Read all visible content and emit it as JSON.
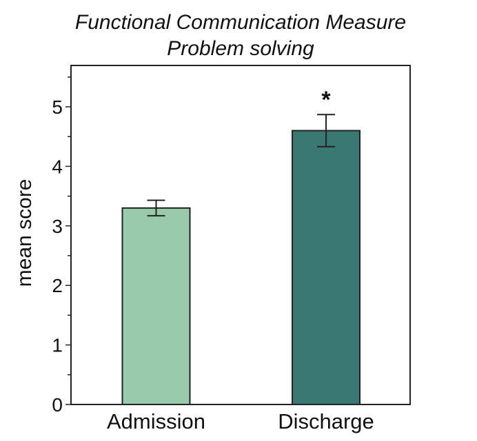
{
  "chart_data": {
    "type": "bar",
    "title": "Functional Communication Measure",
    "subtitle": "Problem solving",
    "xlabel": "",
    "ylabel": "mean score",
    "categories": [
      "Admission",
      "Discharge"
    ],
    "values": [
      3.3,
      4.6
    ],
    "errors": [
      0.13,
      0.27
    ],
    "colors": [
      "#97cbab",
      "#387772"
    ],
    "annotations": [
      {
        "category": "Discharge",
        "text": "*"
      }
    ],
    "ylim": [
      0,
      5.7
    ],
    "yticks": [
      "0",
      "1",
      "2",
      "3",
      "4",
      "5"
    ],
    "minor_tick_step": 0.5,
    "grid": false,
    "legend": "none"
  }
}
